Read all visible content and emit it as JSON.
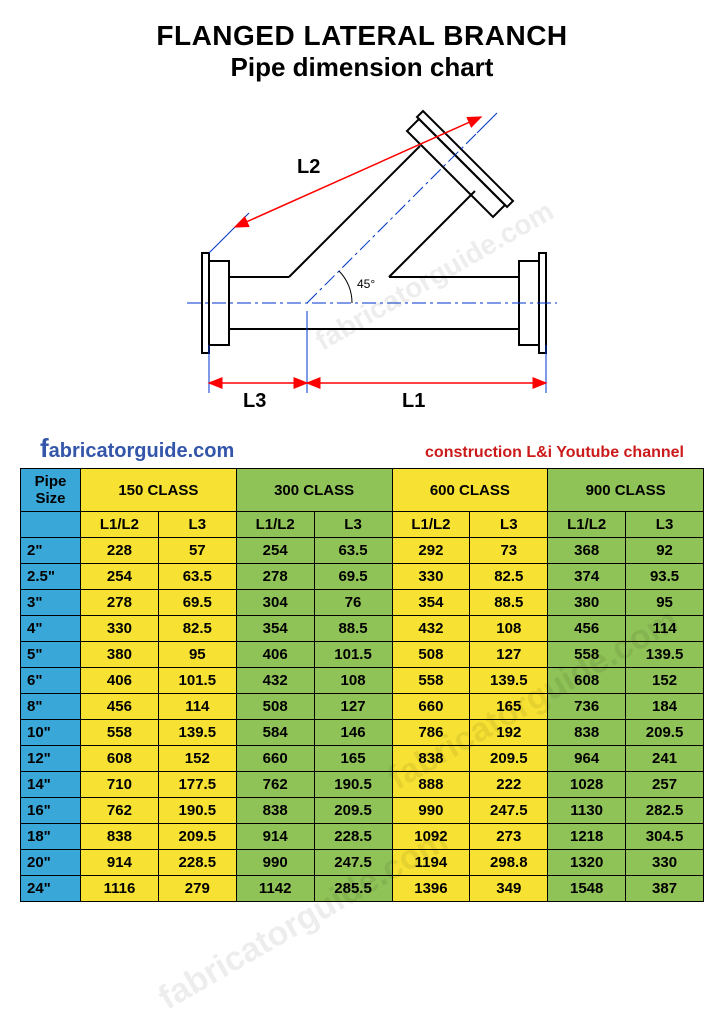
{
  "title": {
    "line1": "FLANGED LATERAL BRANCH",
    "line2": "Pipe dimension chart"
  },
  "diagram": {
    "labels": {
      "L1": "L1",
      "L2": "L2",
      "L3": "L3",
      "angle": "45°"
    },
    "colors": {
      "outline": "#000000",
      "dim_line": "#ff0000",
      "center_line": "#0033cc",
      "extension_line": "#0033cc",
      "text": "#000000"
    },
    "line_widths": {
      "outline": 2,
      "dim": 1.5,
      "center": 1
    }
  },
  "links": {
    "site_first_letter": "f",
    "site_rest": "abricatorguide.com",
    "credits": "construction L&i Youtube channel"
  },
  "watermark_text": "fabricatorguide.com",
  "table": {
    "colors": {
      "size_col": "#3aa7d9",
      "yellow": "#f7e233",
      "green": "#8fc257",
      "border": "#000000",
      "text": "#000000"
    },
    "header": {
      "size_label": "Pipe\nSize",
      "classes": [
        "150 CLASS",
        "300 CLASS",
        "600 CLASS",
        "900 CLASS"
      ],
      "sub": [
        "L1/L2",
        "L3"
      ]
    },
    "rows": [
      {
        "size": "2\"",
        "v": [
          228,
          57,
          254,
          63.5,
          292,
          73,
          368,
          92
        ]
      },
      {
        "size": "2.5\"",
        "v": [
          254,
          63.5,
          278,
          69.5,
          330,
          82.5,
          374,
          93.5
        ]
      },
      {
        "size": "3\"",
        "v": [
          278,
          69.5,
          304,
          76,
          354,
          88.5,
          380,
          95
        ]
      },
      {
        "size": "4\"",
        "v": [
          330,
          82.5,
          354,
          88.5,
          432,
          108,
          456,
          114
        ]
      },
      {
        "size": "5\"",
        "v": [
          380,
          95,
          406,
          101.5,
          508,
          127,
          558,
          139.5
        ]
      },
      {
        "size": "6\"",
        "v": [
          406,
          101.5,
          432,
          108,
          558,
          139.5,
          608,
          152
        ]
      },
      {
        "size": "8\"",
        "v": [
          456,
          114,
          508,
          127,
          660,
          165,
          736,
          184
        ]
      },
      {
        "size": "10\"",
        "v": [
          558,
          139.5,
          584,
          146,
          786,
          192,
          838,
          209.5
        ]
      },
      {
        "size": "12\"",
        "v": [
          608,
          152,
          660,
          165,
          838,
          209.5,
          964,
          241
        ]
      },
      {
        "size": "14\"",
        "v": [
          710,
          177.5,
          762,
          190.5,
          888,
          222,
          1028,
          257
        ]
      },
      {
        "size": "16\"",
        "v": [
          762,
          190.5,
          838,
          209.5,
          990,
          247.5,
          1130,
          282.5
        ]
      },
      {
        "size": "18\"",
        "v": [
          838,
          209.5,
          914,
          228.5,
          1092,
          273,
          1218,
          304.5
        ]
      },
      {
        "size": "20\"",
        "v": [
          914,
          228.5,
          990,
          247.5,
          1194,
          298.8,
          1320,
          330
        ]
      },
      {
        "size": "24\"",
        "v": [
          1116,
          279,
          1142,
          285.5,
          1396,
          349,
          1548,
          387
        ]
      }
    ]
  }
}
